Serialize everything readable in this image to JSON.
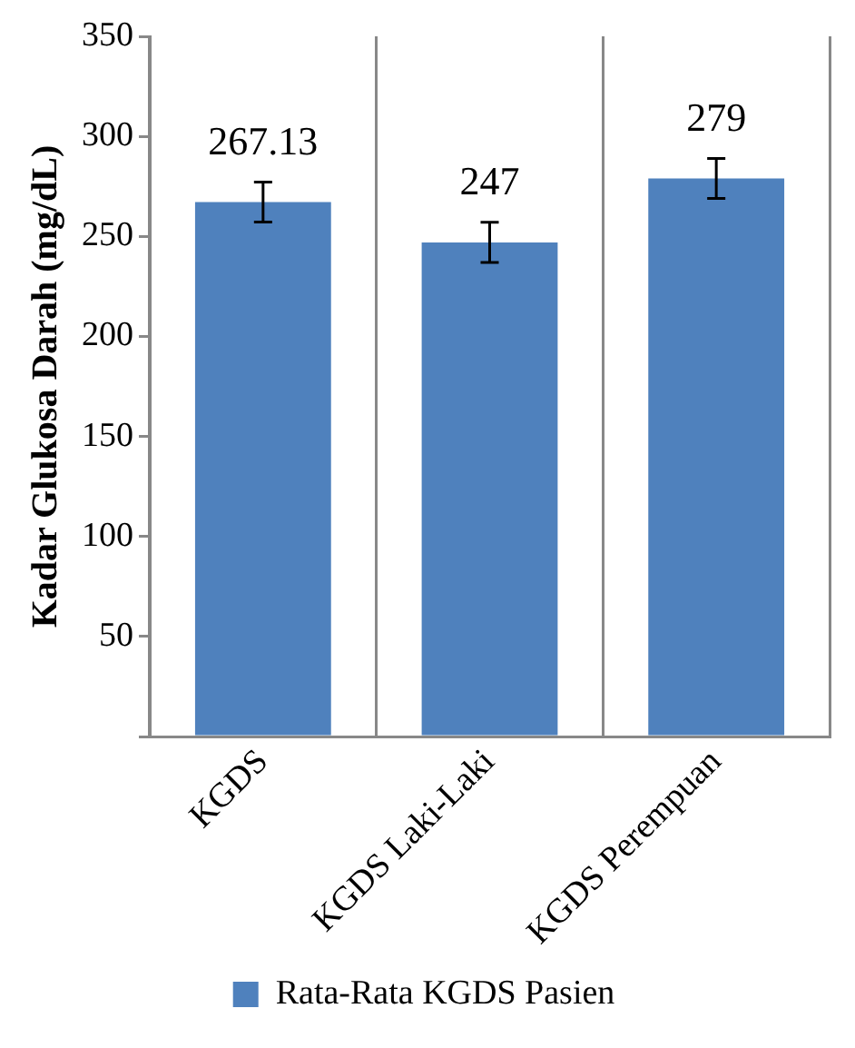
{
  "chart_data": {
    "type": "bar",
    "ylabel": "Kadar Glukosa Darah (mg/dL)",
    "categories": [
      "KGDS",
      "KGDS Laki-Laki",
      "KGDS Perempuan"
    ],
    "series": [
      {
        "name": "Rata-Rata KGDS Pasien",
        "color": "#4f81bd",
        "values": [
          267.13,
          247,
          279
        ],
        "errors": [
          10,
          10,
          10
        ]
      }
    ],
    "ylim": [
      0,
      350
    ],
    "yticks": [
      {
        "value": 0,
        "label": null
      },
      50,
      100,
      150,
      200,
      250,
      300,
      350
    ],
    "grid": "x",
    "legend": "bottom",
    "data_labels": true
  }
}
